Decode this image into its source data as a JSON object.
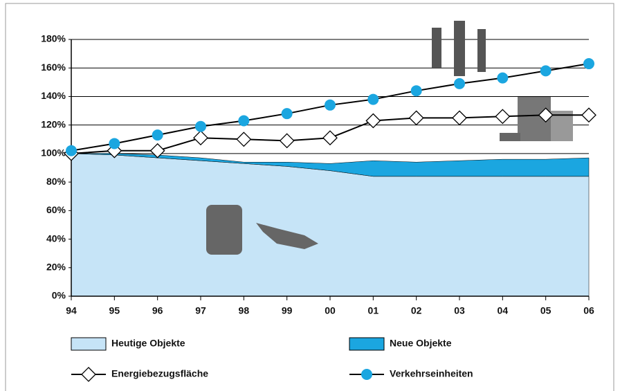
{
  "chart_data": {
    "type": "area-line",
    "categories": [
      "94",
      "95",
      "96",
      "97",
      "98",
      "99",
      "00",
      "01",
      "02",
      "03",
      "04",
      "05",
      "06"
    ],
    "series": [
      {
        "name": "Heutige Objekte",
        "type": "area",
        "color": "#c6e4f7",
        "values": [
          100,
          99,
          97,
          95,
          93,
          91,
          88,
          84,
          84,
          84,
          84,
          84,
          84
        ]
      },
      {
        "name": "Neue Objekte",
        "type": "area",
        "color": "#1ba6e0",
        "values": [
          0,
          1,
          2,
          2,
          1,
          3,
          5,
          11,
          10,
          11,
          12,
          12,
          13
        ]
      },
      {
        "name": "Energiebezugsfläche",
        "type": "line",
        "marker": "diamond",
        "color": "#000000",
        "values": [
          100,
          102,
          102,
          111,
          110,
          109,
          111,
          123,
          125,
          125,
          126,
          127,
          127
        ]
      },
      {
        "name": "Verkehrseinheiten",
        "type": "line",
        "marker": "circle",
        "color": "#1ba6e0",
        "values": [
          102,
          107,
          113,
          119,
          123,
          128,
          134,
          138,
          144,
          149,
          153,
          158,
          163
        ]
      }
    ],
    "ylim": [
      0,
      180
    ],
    "yticks": [
      {
        "value": 0,
        "label": "0%"
      },
      {
        "value": 20,
        "label": "20%"
      },
      {
        "value": 40,
        "label": "40%"
      },
      {
        "value": 60,
        "label": "60%"
      },
      {
        "value": 80,
        "label": "80%"
      },
      {
        "value": 100,
        "label": "100%"
      },
      {
        "value": 120,
        "label": "120%"
      },
      {
        "value": 140,
        "label": "140%"
      },
      {
        "value": 160,
        "label": "160%"
      },
      {
        "value": 180,
        "label": "180%"
      }
    ],
    "grid": true,
    "legend": "bottom"
  }
}
